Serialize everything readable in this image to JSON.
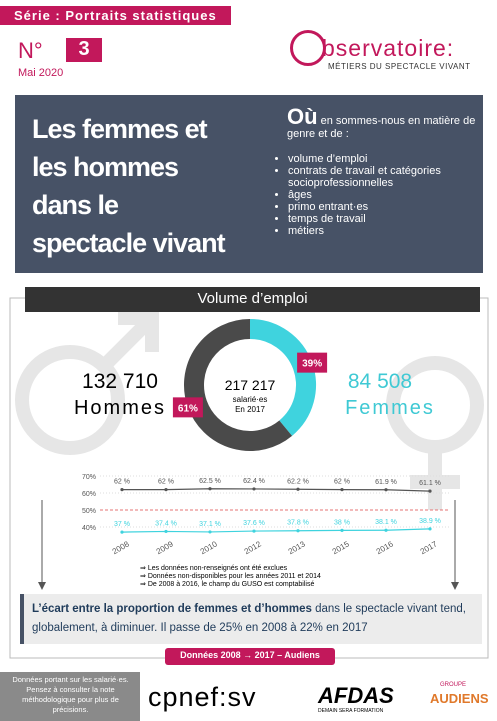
{
  "header": {
    "series": "Série : Portraits statistiques",
    "number_prefix": "N°",
    "number": "3",
    "date": "Mai 2020",
    "logo_letter": "o",
    "logo_word": "bservatoire:",
    "logo_sub": "MÉTIERS DU SPECTACLE VIVANT"
  },
  "banner": {
    "title_lines": [
      "Les femmes et",
      "les hommes",
      "dans le",
      "spectacle vivant"
    ],
    "question_lead": "Où",
    "question_rest": "en sommes-nous en matière de genre et de :",
    "topics": [
      "volume d’emploi",
      "contrats de travail et catégories socioprofessionnelles",
      "âges",
      "primo entrant·es",
      "temps de travail",
      "métiers"
    ]
  },
  "section": {
    "title": "Volume d’emploi",
    "men_count": "132 710",
    "men_label": "Hommes",
    "women_count": "84 508",
    "women_label": "Femmes",
    "total": "217 217",
    "total_sub": "salarié·es",
    "total_year": "En 2017"
  },
  "donut": {
    "values": [
      39,
      61
    ],
    "value_labels": [
      "39%",
      "61%"
    ],
    "colors": [
      "#3fd3de",
      "#4a4a4a"
    ]
  },
  "trend": {
    "categories": [
      "2008",
      "2009",
      "2010",
      "2012",
      "2013",
      "2015",
      "2016",
      "2017"
    ],
    "men": {
      "values": [
        62,
        62,
        62.5,
        62.4,
        62.2,
        62,
        61.9,
        61.1
      ],
      "value_labels": [
        "62 %",
        "62 %",
        "62.5 %",
        "62.4 %",
        "62.2 %",
        "62 %",
        "61.9 %",
        "61.1 %"
      ],
      "color": "#555555"
    },
    "women": {
      "values": [
        37,
        37.4,
        37.1,
        37.6,
        37.8,
        38,
        38.1,
        38.9
      ],
      "value_labels": [
        "37 %",
        "37.4 %",
        "37.1 %",
        "37.6 %",
        "37.8 %",
        "38 %",
        "38.1 %",
        "38.9 %"
      ],
      "color": "#3fd3de"
    },
    "ylim": [
      35,
      72
    ],
    "yticks": [
      {
        "value": 70,
        "label": "70%"
      },
      {
        "value": 60,
        "label": "60%"
      },
      {
        "value": 50,
        "label": "50%"
      },
      {
        "value": 40,
        "label": "40%"
      }
    ],
    "notes": [
      "Les données non-renseignés ont été exclues",
      "Données non-disponibles pour les années 2011 et 2014",
      "De 2008 à 2016, le champ du GUSO est comptabilisé"
    ]
  },
  "conclusion": {
    "bold": "L’écart entre la proportion de femmes et d’hommes",
    "rest": "dans le spectacle vivant tend, globalement, à diminuer. Il passe de 25% en 2008 à 22% en 2017"
  },
  "source": "Données 2008 → 2017 – Audiens",
  "footer": {
    "note": "Données portant sur les salarié·es. Pensez à consulter la note méthodologique pour plus de précisions.",
    "logo1": "cpnef:sv",
    "logo2": "AFDAS",
    "logo2_sub": "DEMAIN SERA FORMATION",
    "logo3_top": "GROUPE",
    "logo3": "AUDIENS"
  }
}
